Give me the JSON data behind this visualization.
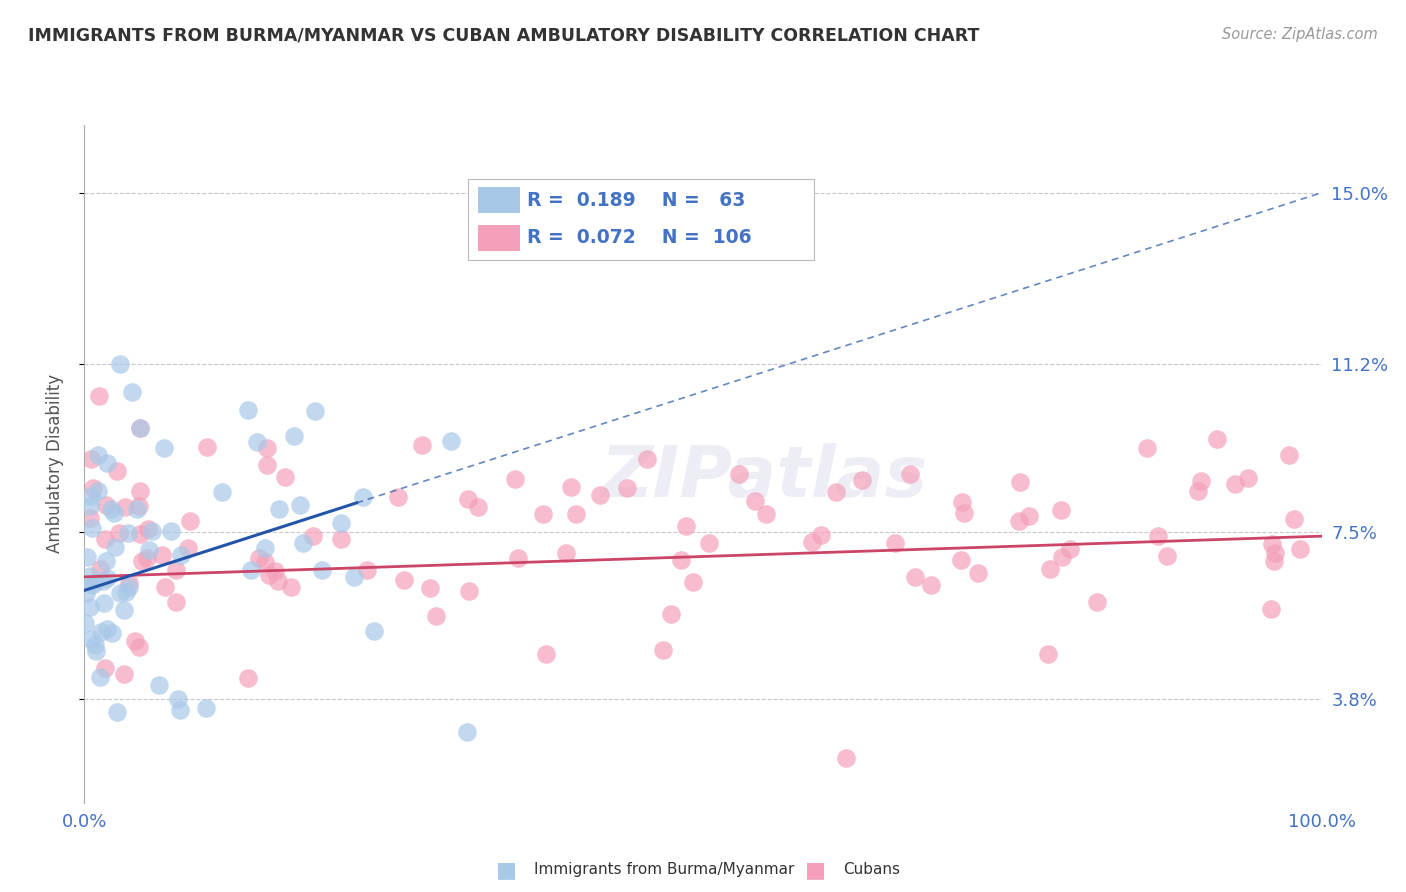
{
  "title": "IMMIGRANTS FROM BURMA/MYANMAR VS CUBAN AMBULATORY DISABILITY CORRELATION CHART",
  "source": "Source: ZipAtlas.com",
  "ylabel": "Ambulatory Disability",
  "xlim": [
    0,
    100
  ],
  "ylim": [
    1.5,
    16.5
  ],
  "yticks": [
    3.8,
    7.5,
    11.2,
    15.0
  ],
  "xticklabels": [
    "0.0%",
    "100.0%"
  ],
  "yticklabels": [
    "3.8%",
    "7.5%",
    "11.2%",
    "15.0%"
  ],
  "background_color": "#ffffff",
  "grid_color": "#c8c8d0",
  "title_color": "#333333",
  "axis_label_color": "#555555",
  "tick_color": "#4472c4",
  "series1_label": "Immigrants from Burma/Myanmar",
  "series1_R": "0.189",
  "series1_N": "63",
  "series1_color": "#a8c8e8",
  "series1_line_color": "#2255aa",
  "series2_label": "Cubans",
  "series2_R": "0.072",
  "series2_N": "106",
  "series2_color": "#f4a0b8",
  "series2_line_color": "#cc4466",
  "legend_R_color": "#4472c4",
  "blue_trend_x0": 0,
  "blue_trend_y0": 6.2,
  "blue_trend_x1": 100,
  "blue_trend_y1": 15.0,
  "blue_solid_end": 22,
  "pink_trend_x0": 0,
  "pink_trend_y0": 6.5,
  "pink_trend_x1": 100,
  "pink_trend_y1": 7.4,
  "watermark": "ZIPatlas",
  "watermark_color": "#ddddee"
}
